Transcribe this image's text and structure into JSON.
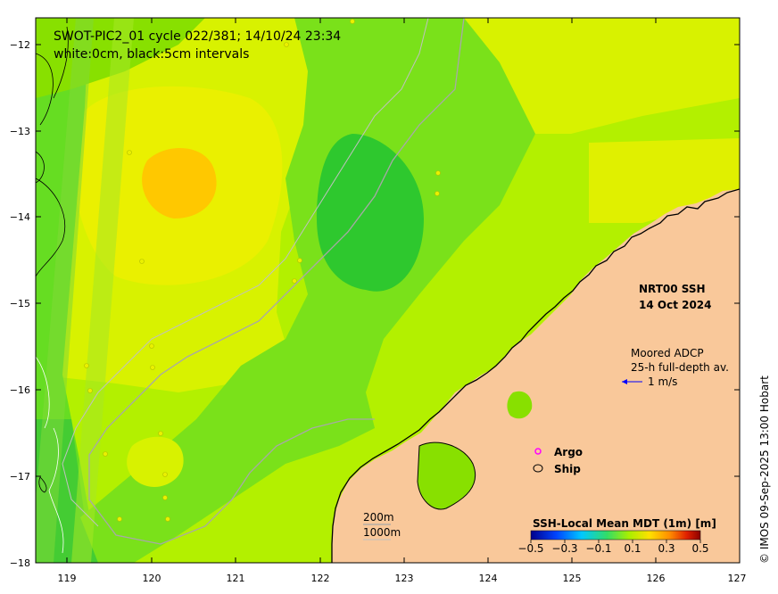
{
  "title": {
    "line1": "SWOT-PIC2_01 cycle 022/381; 14/10/24 23:34",
    "line2": "white:0cm, black:5cm intervals"
  },
  "product": {
    "name": "NRT00 SSH",
    "date": "14 Oct 2024"
  },
  "adcp": {
    "line1": "Moored ADCP",
    "line2": "25-h full-depth av.",
    "scale_label": "1 m/s"
  },
  "markers": {
    "argo": "Argo",
    "ship": "Ship"
  },
  "isobaths": {
    "shallow": "200m",
    "deep": "1000m"
  },
  "colorbar": {
    "title": "SSH-Local Mean MDT (1m) [m]",
    "ticks": [
      "−0.5",
      "−0.3",
      "−0.1",
      "0.1",
      "0.3",
      "0.5"
    ]
  },
  "axes": {
    "x_ticks": [
      "119",
      "120",
      "121",
      "122",
      "123",
      "124",
      "125",
      "126",
      "127"
    ],
    "y_ticks": [
      "−12",
      "−13",
      "−14",
      "−15",
      "−16",
      "−17",
      "−18"
    ]
  },
  "credit": "© IMOS 09-Sep-2025 13:00 Hobart",
  "colors": {
    "land": "#f9c89a",
    "sea_green": "#66dd22",
    "sea_yellow_green": "#b3f000",
    "sea_yellow": "#e8f000",
    "sea_orange": "#ffc800",
    "sea_dark_green": "#2ec82e",
    "argo_marker": "#ff00ff",
    "adcp_arrow": "#0000ff"
  }
}
